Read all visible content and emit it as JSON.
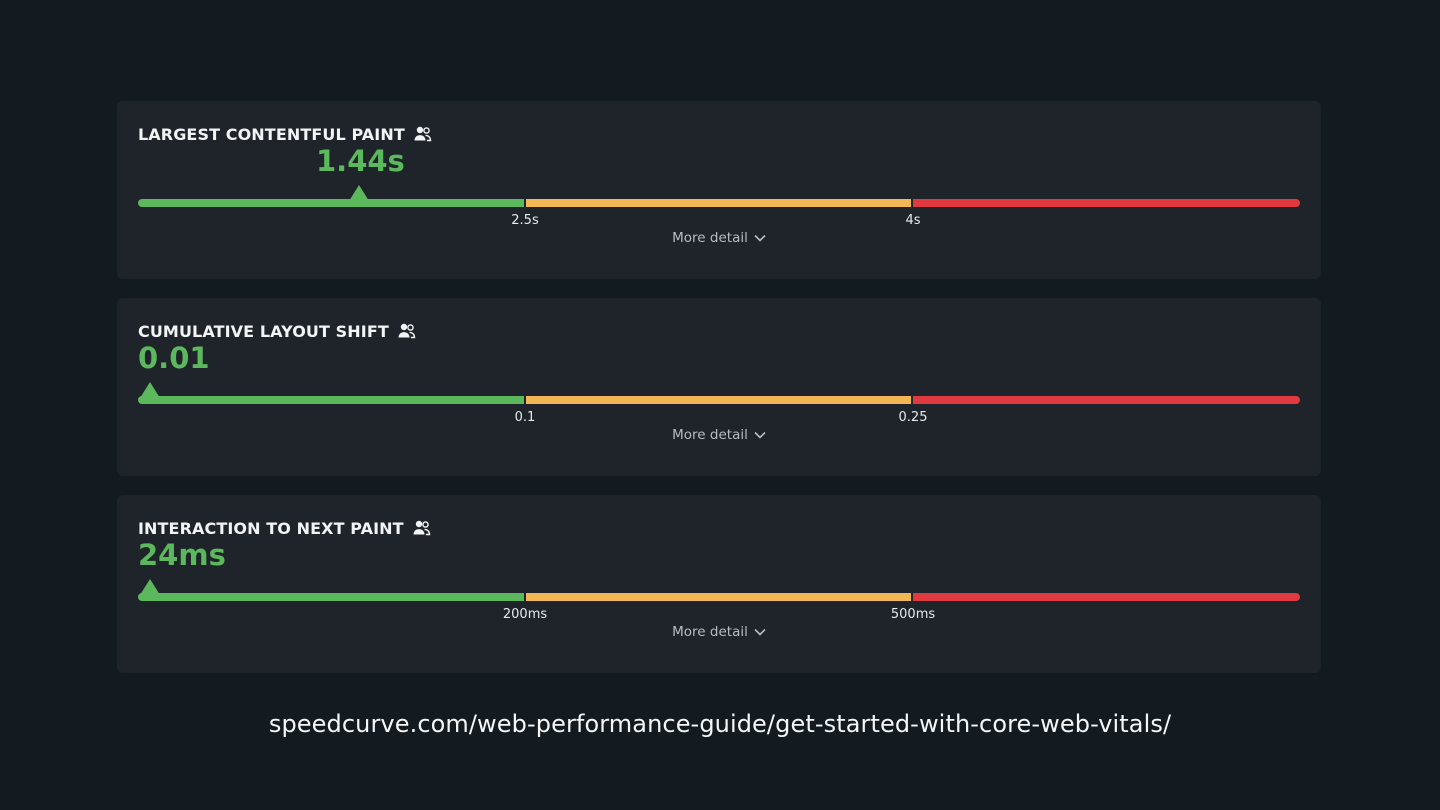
{
  "colors": {
    "background": "#141b20",
    "card": "#1e2429",
    "good": "#5cb85c",
    "needs_improvement": "#f4b755",
    "poor": "#e0393f"
  },
  "metrics": [
    {
      "title": "LARGEST CONTENTFUL PAINT",
      "icon": "users-icon",
      "value": "1.44s",
      "marker_fraction": 0.19,
      "thresholds": [
        "2.5s",
        "4s"
      ],
      "more_label": "More detail"
    },
    {
      "title": "CUMULATIVE LAYOUT SHIFT",
      "icon": "users-icon",
      "value": "0.01",
      "marker_fraction": 0.01,
      "thresholds": [
        "0.1",
        "0.25"
      ],
      "more_label": "More detail"
    },
    {
      "title": "INTERACTION TO NEXT PAINT",
      "icon": "users-icon",
      "value": "24ms",
      "marker_fraction": 0.01,
      "thresholds": [
        "200ms",
        "500ms"
      ],
      "more_label": "More detail"
    }
  ],
  "footer": {
    "url": "speedcurve.com/web-performance-guide/get-started-with-core-web-vitals/"
  }
}
